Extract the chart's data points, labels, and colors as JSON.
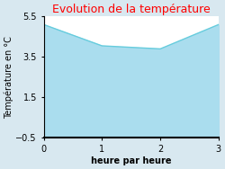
{
  "title": "Evolution de la température",
  "title_color": "#ff0000",
  "xlabel": "heure par heure",
  "ylabel": "Température en °C",
  "x": [
    0,
    1,
    2,
    3
  ],
  "y": [
    5.1,
    4.05,
    3.9,
    5.1
  ],
  "ylim": [
    -0.5,
    5.5
  ],
  "xlim": [
    0,
    3
  ],
  "yticks": [
    -0.5,
    1.5,
    3.5,
    5.5
  ],
  "xticks": [
    0,
    1,
    2,
    3
  ],
  "line_color": "#66ccdd",
  "fill_color": "#aaddee",
  "fill_alpha": 1.0,
  "background_color": "#d8e8f0",
  "plot_bg_color": "#ffffff",
  "title_fontsize": 9,
  "label_fontsize": 7,
  "tick_fontsize": 7
}
